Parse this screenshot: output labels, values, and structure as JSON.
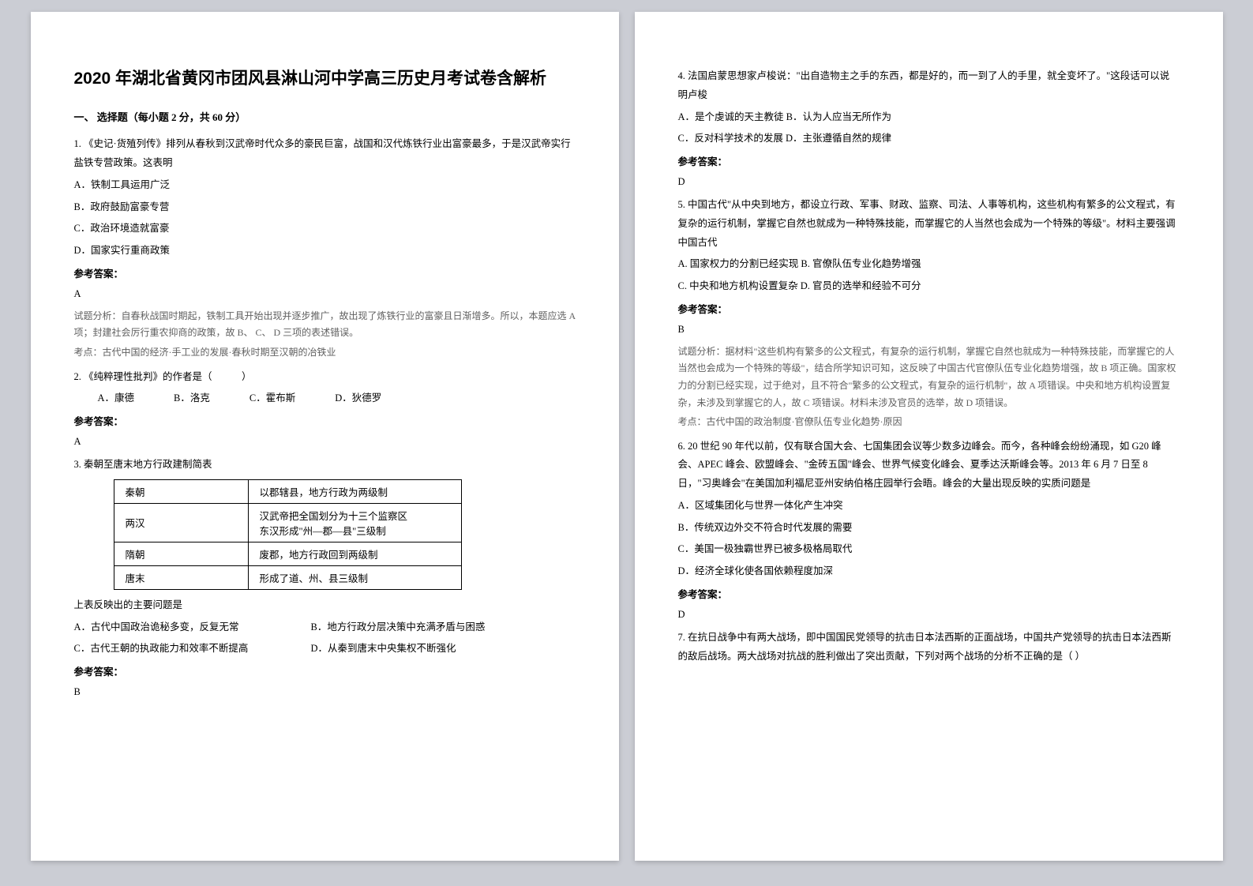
{
  "title": "2020 年湖北省黄冈市团风县淋山河中学高三历史月考试卷含解析",
  "section_heading": "一、 选择题（每小题 2 分，共 60 分）",
  "answer_label": "参考答案：",
  "q1": {
    "text": "1. 《史记·货殖列传》排列从春秋到汉武帝时代众多的豪民巨富，战国和汉代炼铁行业出富豪最多，于是汉武帝实行盐铁专营政策。这表明",
    "options": {
      "a": "A．铁制工具运用广泛",
      "b": "B．政府鼓励富豪专营",
      "c": "C．政治环境造就富豪",
      "d": "D．国家实行重商政策"
    },
    "answer": "A",
    "analysis": "试题分析：自春秋战国时期起，铁制工具开始出现并逐步推广，故出现了炼铁行业的富豪且日渐增多。所以，本题应选 A 项；封建社会厉行重农抑商的政策，故 B、 C、 D 三项的表述错误。",
    "exam_point": "考点：古代中国的经济·手工业的发展·春秋时期至汉朝的冶铁业"
  },
  "q2": {
    "text": "2. 《纯粹理性批判》的作者是（　　　）",
    "options_text": "A．康德　　　　B．洛克　　　　C．霍布斯　　　　D．狄德罗",
    "answer": "A"
  },
  "q3": {
    "text": "3. 秦朝至唐末地方行政建制简表",
    "table": {
      "rows": [
        {
          "dynasty": "秦朝",
          "desc": "以郡辖县，地方行政为两级制"
        },
        {
          "dynasty": "两汉",
          "desc": "汉武帝把全国划分为十三个监察区\n东汉形成\"州—郡—县\"三级制"
        },
        {
          "dynasty": "隋朝",
          "desc": "废郡，地方行政回到两级制"
        },
        {
          "dynasty": "唐末",
          "desc": "形成了道、州、县三级制"
        }
      ]
    },
    "sub_question": "上表反映出的主要问题是",
    "option_a": "A．古代中国政治诡秘多变，反复无常",
    "option_b": "B．地方行政分层决策中充满矛盾与困惑",
    "option_c": "C．古代王朝的执政能力和效率不断提高",
    "option_d": "D．从秦到唐末中央集权不断强化",
    "answer": "B"
  },
  "q4": {
    "text": "4. 法国启蒙思想家卢梭说：\"出自造物主之手的东西，都是好的，而一到了人的手里，就全变坏了。\"这段话可以说明卢梭",
    "option_ab": "A．是个虔诚的天主教徒 B．认为人应当无所作为",
    "option_cd": "C．反对科学技术的发展 D．主张遵循自然的规律",
    "answer": "D"
  },
  "q5": {
    "text": "5. 中国古代\"从中央到地方，都设立行政、军事、财政、监察、司法、人事等机构，这些机构有繁多的公文程式，有复杂的运行机制，掌握它自然也就成为一种特殊技能，而掌握它的人当然也会成为一个特殊的等级\"。材料主要强调中国古代",
    "option_ab": "A. 国家权力的分割已经实现 B. 官僚队伍专业化趋势增强",
    "option_cd": "C. 中央和地方机构设置复杂 D. 官员的选举和经验不可分",
    "answer": "B",
    "analysis": "试题分析：据材料\"这些机构有繁多的公文程式，有复杂的运行机制，掌握它自然也就成为一种特殊技能，而掌握它的人当然也会成为一个特殊的等级\"，结合所学知识可知，这反映了中国古代官僚队伍专业化趋势增强，故 B 项正确。国家权力的分割已经实现，过于绝对，且不符合\"繁多的公文程式，有复杂的运行机制\"，故 A 项错误。中央和地方机构设置复杂，未涉及到掌握它的人，故 C 项错误。材料未涉及官员的选举，故 D 项错误。",
    "exam_point": "考点：古代中国的政治制度·官僚队伍专业化趋势·原因"
  },
  "q6": {
    "text": "6. 20 世纪 90 年代以前，仅有联合国大会、七国集团会议等少数多边峰会。而今，各种峰会纷纷涌现，如 G20 峰会、APEC 峰会、欧盟峰会、\"金砖五国\"峰会、世界气候变化峰会、夏季达沃斯峰会等。2013 年 6 月 7 日至 8 日，\"习奥峰会\"在美国加利福尼亚州安纳伯格庄园举行会晤。峰会的大量出现反映的实质问题是",
    "options": {
      "a": "A．区域集团化与世界一体化产生冲突",
      "b": "B．传统双边外交不符合时代发展的需要",
      "c": "C．美国一极独霸世界已被多极格局取代",
      "d": "D．经济全球化使各国依赖程度加深"
    },
    "answer": "D"
  },
  "q7": {
    "text": "7. 在抗日战争中有两大战场，即中国国民党领导的抗击日本法西斯的正面战场，中国共产党领导的抗击日本法西斯的敌后战场。两大战场对抗战的胜利做出了突出贡献，下列对两个战场的分析不正确的是（   ）"
  },
  "colors": {
    "page_bg": "#ffffff",
    "body_bg": "#cbcdd4",
    "text_primary": "#000000",
    "text_analysis": "#606060",
    "table_border": "#000000"
  },
  "typography": {
    "title_fontsize": 21,
    "body_fontsize": 12.5,
    "analysis_fontsize": 12
  }
}
